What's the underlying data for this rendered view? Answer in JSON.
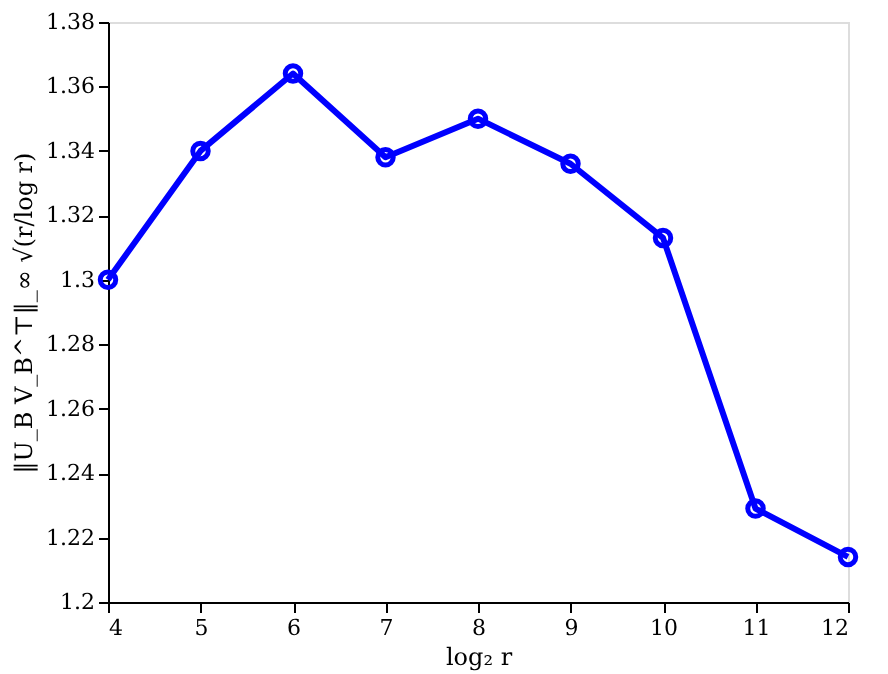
{
  "chart_data": {
    "type": "line",
    "x": [
      4,
      5,
      6,
      7,
      8,
      9,
      10,
      11,
      12
    ],
    "series": [
      {
        "color": "#0000ff",
        "values": [
          1.3,
          1.34,
          1.364,
          1.338,
          1.35,
          1.336,
          1.313,
          1.229,
          1.214
        ]
      }
    ],
    "xlabel": "log₂ r",
    "ylabel": "‖U_B V_B^⊤‖_∞ √(r/log r)",
    "xlim": [
      4,
      12
    ],
    "xticks": [
      4,
      5,
      6,
      7,
      8,
      9,
      10,
      11,
      12
    ],
    "ylim": [
      1.2,
      1.38
    ],
    "yticks": [
      1.2,
      1.22,
      1.24,
      1.26,
      1.28,
      1.3,
      1.32,
      1.34,
      1.36,
      1.38
    ],
    "marker": "circle",
    "line_style": "solid",
    "grid": false
  }
}
